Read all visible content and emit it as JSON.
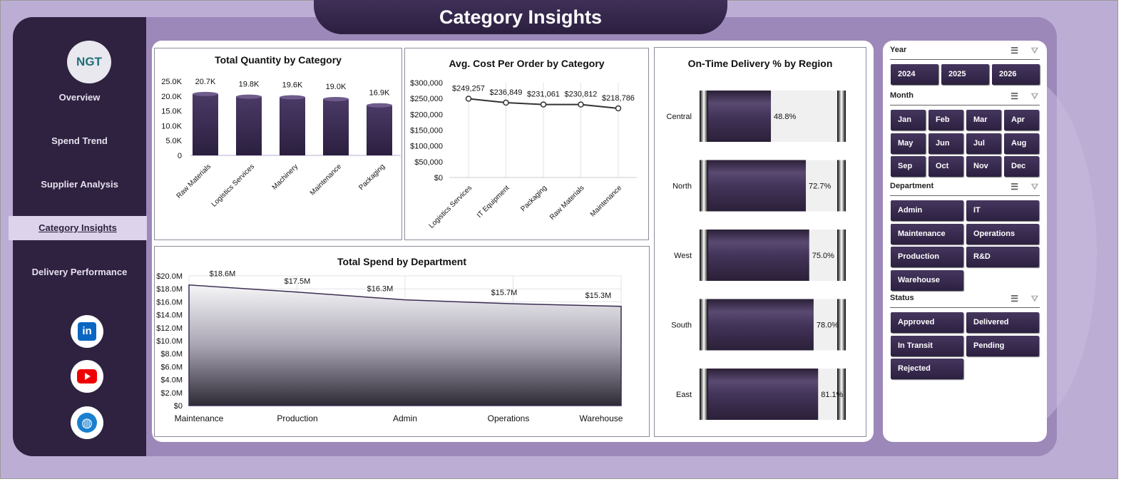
{
  "header": {
    "title": "Category Insights"
  },
  "sidebar": {
    "logo": "NGT",
    "items": [
      "Overview",
      "Spend Trend",
      "Supplier Analysis",
      "Category Insights",
      "Delivery Performance"
    ],
    "active": "Category Insights",
    "social": [
      "linkedin-icon",
      "youtube-icon",
      "globe-icon"
    ]
  },
  "colors": {
    "primary": "#2e2240",
    "accent": "#9d88ba",
    "bar": "#3f2f58"
  },
  "chart_data": [
    {
      "type": "bar",
      "title": "Total Quantity by Category",
      "categories": [
        "Raw Materials",
        "Logistics Services",
        "Machinery",
        "Maintenance",
        "Packaging"
      ],
      "values": [
        20700,
        19800,
        19600,
        19000,
        16900
      ],
      "labels": [
        "20.7K",
        "19.8K",
        "19.6K",
        "19.0K",
        "16.9K"
      ],
      "yticks": [
        "0",
        "5.0K",
        "10.0K",
        "15.0K",
        "20.0K",
        "25.0K"
      ],
      "ylim": [
        0,
        25000
      ]
    },
    {
      "type": "line",
      "title": "Avg. Cost Per Order by Category",
      "categories": [
        "Logistics Services",
        "IT Equipment",
        "Packaging",
        "Raw Materials",
        "Maintenance"
      ],
      "values": [
        249257,
        236849,
        231061,
        230812,
        218786
      ],
      "labels": [
        "$249,257",
        "$236,849",
        "$231,061",
        "$230,812",
        "$218,786"
      ],
      "yticks": [
        "$0",
        "$50,000",
        "$100,000",
        "$150,000",
        "$200,000",
        "$250,000",
        "$300,000"
      ],
      "ylim": [
        0,
        300000
      ]
    },
    {
      "type": "area",
      "title": "Total Spend by Department",
      "categories": [
        "Maintenance",
        "Production",
        "Admin",
        "Operations",
        "Warehouse"
      ],
      "values": [
        18.6,
        17.5,
        16.3,
        15.7,
        15.3
      ],
      "labels": [
        "$18.6M",
        "$17.5M",
        "$16.3M",
        "$15.7M",
        "$15.3M"
      ],
      "yticks": [
        "$0",
        "$2.0M",
        "$4.0M",
        "$6.0M",
        "$8.0M",
        "$10.0M",
        "$12.0M",
        "$14.0M",
        "$16.0M",
        "$18.0M",
        "$20.0M"
      ],
      "ylim": [
        0,
        20
      ]
    },
    {
      "type": "bar",
      "orientation": "horizontal",
      "title": "On-Time Delivery % by Region",
      "categories": [
        "Central",
        "North",
        "West",
        "South",
        "East"
      ],
      "values": [
        48.8,
        72.7,
        75.0,
        78.0,
        81.1
      ],
      "labels": [
        "48.8%",
        "72.7%",
        "75.0%",
        "78.0%",
        "81.1%"
      ],
      "xlim": [
        0,
        100
      ]
    }
  ],
  "slicers": {
    "year": {
      "title": "Year",
      "options": [
        "2024",
        "2025",
        "2026"
      ]
    },
    "month": {
      "title": "Month",
      "options": [
        "Jan",
        "Feb",
        "Mar",
        "Apr",
        "May",
        "Jun",
        "Jul",
        "Aug",
        "Sep",
        "Oct",
        "Nov",
        "Dec"
      ]
    },
    "department": {
      "title": "Department",
      "options": [
        "Admin",
        "IT",
        "Maintenance",
        "Operations",
        "Production",
        "R&D",
        "Warehouse"
      ]
    },
    "status": {
      "title": "Status",
      "options": [
        "Approved",
        "Delivered",
        "In Transit",
        "Pending",
        "Rejected"
      ]
    }
  }
}
